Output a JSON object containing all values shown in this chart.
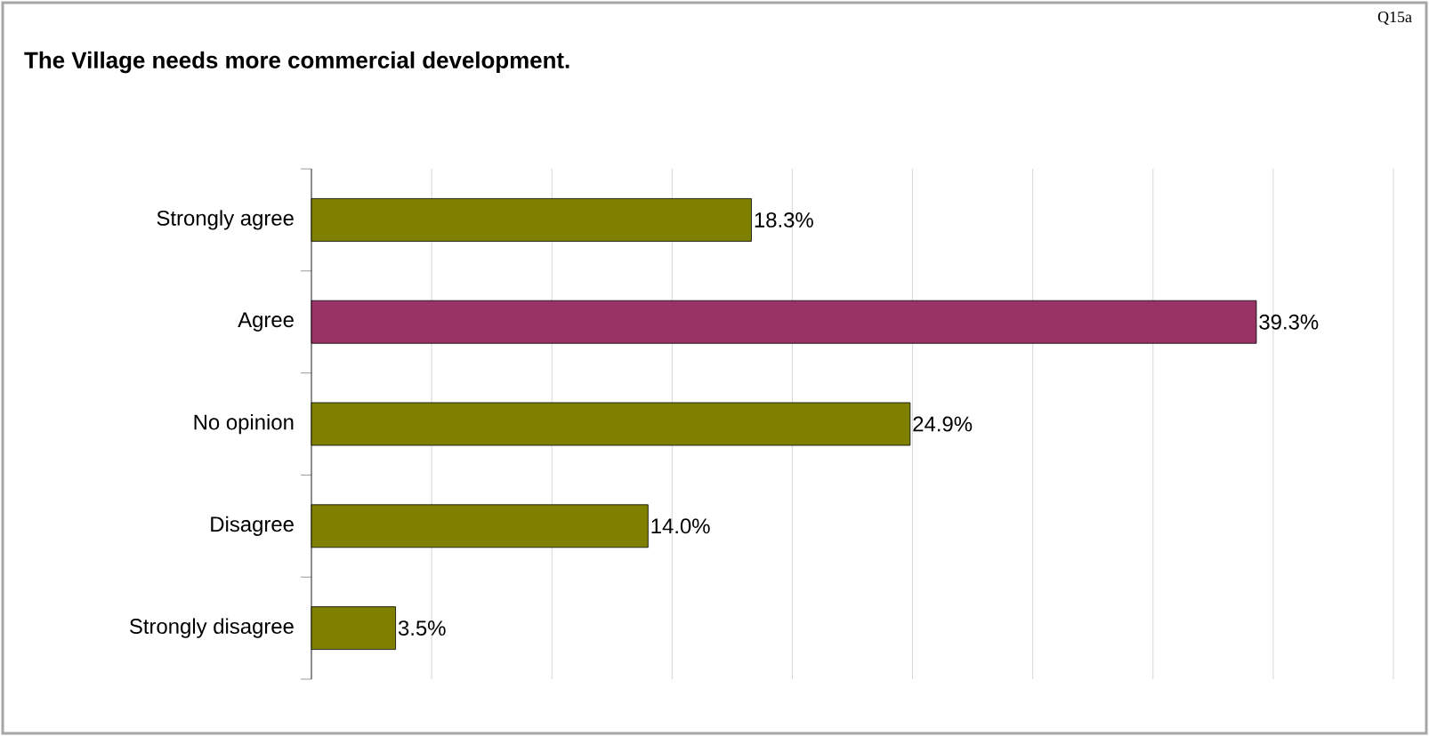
{
  "chart_data": {
    "type": "bar",
    "orientation": "horizontal",
    "title": "The Village needs more commercial development.",
    "annotations": [
      "Q15a"
    ],
    "categories": [
      "Strongly agree",
      "Agree",
      "No opinion",
      "Disagree",
      "Strongly disagree"
    ],
    "values": [
      18.3,
      39.3,
      24.9,
      14.0,
      3.5
    ],
    "colors": [
      "#808000",
      "#993366",
      "#808000",
      "#808000",
      "#808000"
    ],
    "value_labels": [
      "18.3%",
      "39.3%",
      "24.9%",
      "14.0%",
      "3.5%"
    ],
    "xlim": [
      0,
      45
    ],
    "xticks": [
      {
        "value": 0,
        "label": null
      },
      {
        "value": 5,
        "label": null
      },
      {
        "value": 10,
        "label": null
      },
      {
        "value": 15,
        "label": null
      },
      {
        "value": 20,
        "label": null
      },
      {
        "value": 25,
        "label": null
      },
      {
        "value": 30,
        "label": null
      },
      {
        "value": 35,
        "label": null
      },
      {
        "value": 40,
        "label": null
      },
      {
        "value": 45,
        "label": null
      }
    ],
    "grid": "x",
    "tick_labels": "y"
  }
}
